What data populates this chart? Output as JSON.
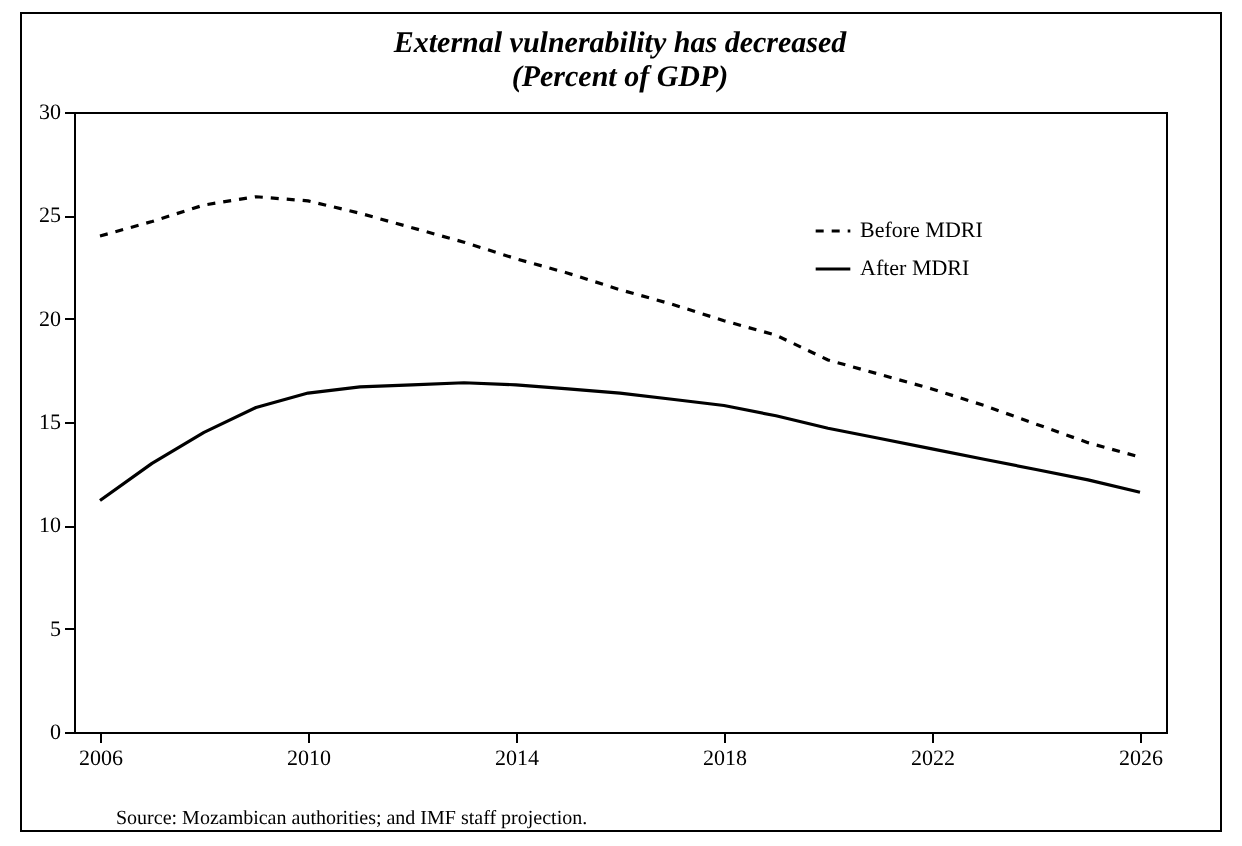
{
  "chart_data": {
    "type": "line",
    "title": [
      "External vulnerability has decreased",
      "(Percent of GDP)"
    ],
    "categories": [
      "2006",
      null,
      null,
      null,
      "2010",
      null,
      null,
      null,
      "2014",
      null,
      null,
      null,
      "2018",
      null,
      null,
      null,
      "2022",
      null,
      null,
      null,
      "2026"
    ],
    "series": [
      {
        "name": "Before MDRI",
        "color": "#000000",
        "line_style": "dashed",
        "values": [
          24.0,
          24.7,
          25.5,
          25.9,
          25.7,
          25.1,
          24.4,
          23.7,
          22.9,
          22.2,
          21.4,
          20.7,
          19.9,
          19.2,
          18.0,
          17.3,
          16.6,
          15.8,
          14.9,
          14.0,
          13.3
        ]
      },
      {
        "name": "After MDRI",
        "color": "#000000",
        "line_style": "solid",
        "values": [
          11.2,
          13.0,
          14.5,
          15.7,
          16.4,
          16.7,
          16.8,
          16.9,
          16.8,
          16.6,
          16.4,
          16.1,
          15.8,
          15.3,
          14.7,
          14.2,
          13.7,
          13.2,
          12.7,
          12.2,
          11.6
        ]
      }
    ],
    "ylim": [
      0,
      30
    ],
    "yticks": [
      0,
      5,
      10,
      15,
      20,
      25,
      30
    ],
    "legend": "top right",
    "grid": false,
    "marker": "none",
    "annotations": [
      "Source: Mozambican authorities; and IMF staff projection."
    ]
  }
}
